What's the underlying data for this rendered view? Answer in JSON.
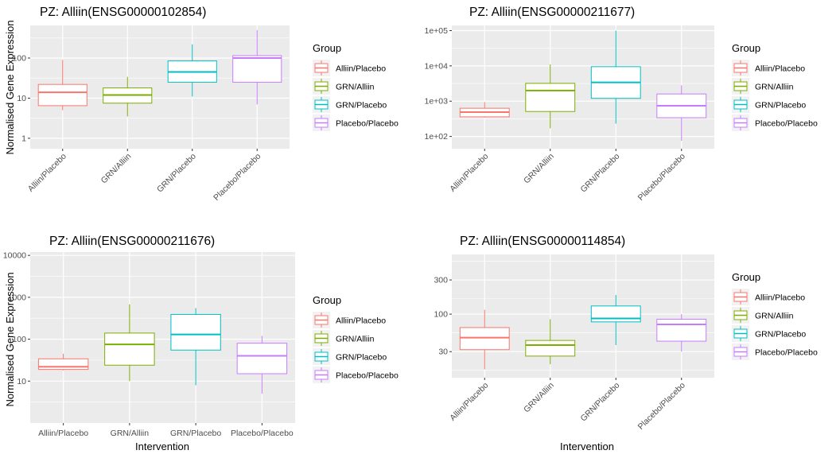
{
  "ylabel": "Normalised Gene Expression",
  "xlabel": "Intervention",
  "legend_title": "Group",
  "groups": [
    "Alliin/Placebo",
    "GRN/Alliin",
    "GRN/Placebo",
    "Placebo/Placebo"
  ],
  "colors": {
    "Alliin/Placebo": "#F8766D",
    "GRN/Alliin": "#7CAE00",
    "GRN/Placebo": "#00BFC4",
    "Placebo/Placebo": "#C77CFF",
    "panel_bg": "#EBEBEB",
    "grid": "#FFFFFF"
  },
  "chart_data": [
    {
      "type": "boxplot",
      "title": "PZ: Alliin(ENSG00000102854)",
      "scale": "log10",
      "ylim": [
        0.55,
        650
      ],
      "yticks": [
        1,
        10,
        100
      ],
      "ytick_labels": [
        "1",
        "10",
        "100"
      ],
      "xlabel": "",
      "ylabel": "Normalised Gene Expression",
      "xtick_rotation": 45,
      "boxes": [
        {
          "group": "Alliin/Placebo",
          "min": 5,
          "q1": 6.5,
          "median": 14,
          "q3": 22,
          "max": 90
        },
        {
          "group": "GRN/Alliin",
          "min": 3.5,
          "q1": 7.5,
          "median": 12,
          "q3": 18,
          "max": 34
        },
        {
          "group": "GRN/Placebo",
          "min": 11,
          "q1": 25,
          "median": 45,
          "q3": 85,
          "max": 220
        },
        {
          "group": "Placebo/Placebo",
          "min": 7,
          "q1": 25,
          "median": 100,
          "q3": 115,
          "max": 500
        }
      ]
    },
    {
      "type": "boxplot",
      "title": "PZ: Alliin(ENSG00000211677)",
      "scale": "log10",
      "ylim": [
        45,
        140000
      ],
      "yticks": [
        100,
        1000,
        10000,
        100000
      ],
      "ytick_labels": [
        "1e+02",
        "1e+03",
        "1e+04",
        "1e+05"
      ],
      "xlabel": "",
      "ylabel": "",
      "xtick_rotation": 45,
      "boxes": [
        {
          "group": "Alliin/Placebo",
          "min": 340,
          "q1": 360,
          "median": 490,
          "q3": 630,
          "max": 940
        },
        {
          "group": "GRN/Alliin",
          "min": 170,
          "q1": 510,
          "median": 2000,
          "q3": 3200,
          "max": 11000
        },
        {
          "group": "GRN/Placebo",
          "min": 230,
          "q1": 1200,
          "median": 3400,
          "q3": 9500,
          "max": 100000
        },
        {
          "group": "Placebo/Placebo",
          "min": 75,
          "q1": 340,
          "median": 740,
          "q3": 1600,
          "max": 2800
        }
      ]
    },
    {
      "type": "boxplot",
      "title": "PZ: Alliin(ENSG00000211676)",
      "scale": "log10",
      "ylim": [
        1,
        12000
      ],
      "yticks": [
        10,
        100,
        1000,
        10000
      ],
      "ytick_labels": [
        "10",
        "100",
        "1000",
        "10000"
      ],
      "xlabel": "Intervention",
      "ylabel": "Normalised Gene Expression",
      "xtick_rotation": 0,
      "boxes": [
        {
          "group": "Alliin/Placebo",
          "min": 18,
          "q1": 19,
          "median": 22,
          "q3": 34,
          "max": 45
        },
        {
          "group": "GRN/Alliin",
          "min": 10,
          "q1": 24,
          "median": 75,
          "q3": 140,
          "max": 680
        },
        {
          "group": "GRN/Placebo",
          "min": 8,
          "q1": 55,
          "median": 130,
          "q3": 390,
          "max": 550
        },
        {
          "group": "Placebo/Placebo",
          "min": 5,
          "q1": 15,
          "median": 40,
          "q3": 80,
          "max": 120
        }
      ]
    },
    {
      "type": "boxplot",
      "title": "PZ: Alliin(ENSG00000114854)",
      "scale": "log10",
      "ylim": [
        13,
        680
      ],
      "yticks": [
        30,
        100,
        300
      ],
      "ytick_labels": [
        "30",
        "100",
        "300"
      ],
      "xlabel": "Intervention",
      "ylabel": "",
      "xtick_rotation": 45,
      "boxes": [
        {
          "group": "Alliin/Placebo",
          "min": 17,
          "q1": 32,
          "median": 47,
          "q3": 65,
          "max": 115
        },
        {
          "group": "GRN/Alliin",
          "min": 20,
          "q1": 26,
          "median": 37,
          "q3": 43,
          "max": 85
        },
        {
          "group": "GRN/Placebo",
          "min": 37,
          "q1": 78,
          "median": 87,
          "q3": 130,
          "max": 185
        },
        {
          "group": "Placebo/Placebo",
          "min": 30,
          "q1": 42,
          "median": 72,
          "q3": 85,
          "max": 100
        }
      ]
    }
  ]
}
